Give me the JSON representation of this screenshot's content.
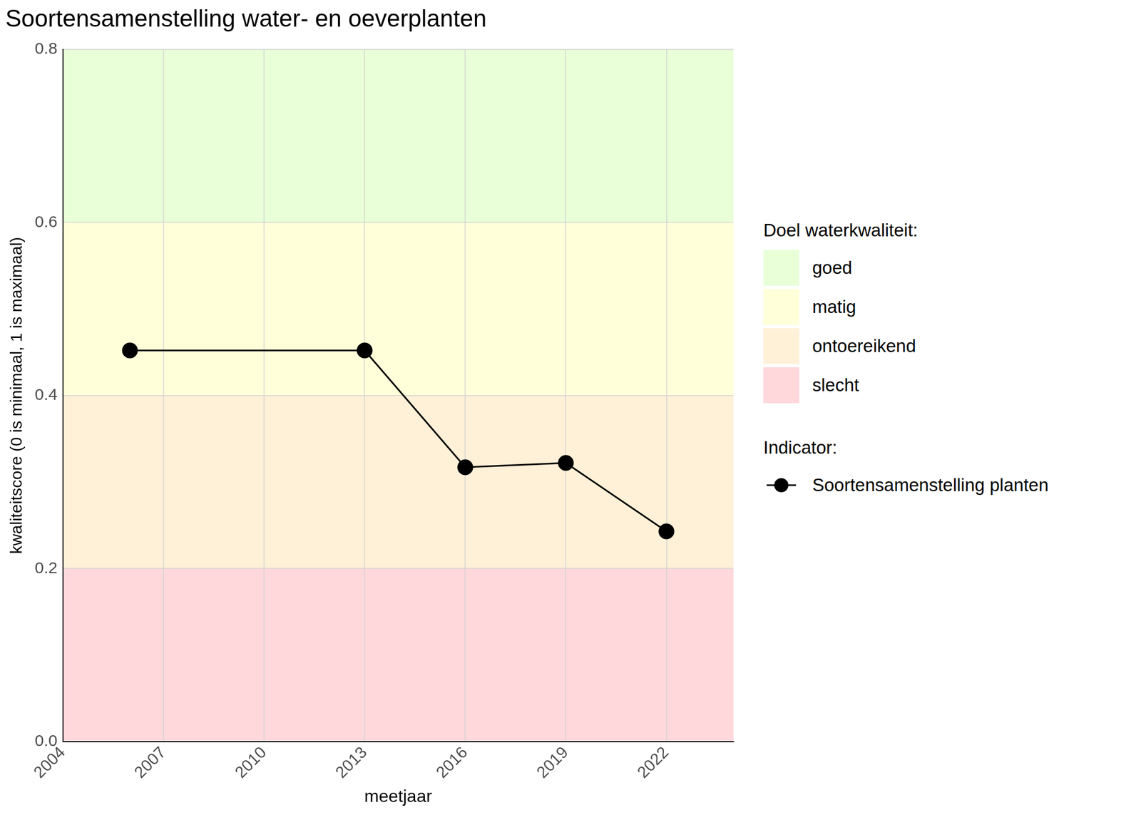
{
  "chart_data": {
    "type": "line",
    "title": "Soortensamenstelling water- en oeverplanten",
    "x_label": "meetjaar",
    "y_label": "kwaliteitscore (0 is minimaal, 1 is maximaal)",
    "x": [
      2006,
      2013,
      2016,
      2019,
      2022
    ],
    "series": [
      {
        "name": "Soortensamenstelling planten",
        "color": "#000000",
        "marker": "circle",
        "line_style": "solid",
        "values": [
          0.452,
          0.452,
          0.317,
          0.322,
          0.243
        ]
      }
    ],
    "xlim": [
      2004,
      2024
    ],
    "xticks": [
      2004,
      2007,
      2010,
      2013,
      2016,
      2019,
      2022
    ],
    "ylim": [
      0,
      0.8
    ],
    "yticks": [
      {
        "value": 0,
        "label": "0.0"
      },
      0.2,
      0.4,
      0.6,
      0.8
    ],
    "grid": true,
    "legend": "right",
    "band_legend_title": "Doel waterkwaliteit:",
    "series_legend_title": "Indicator:",
    "bands": [
      {
        "name": "goed",
        "from": 0.6,
        "to": 0.8,
        "color": "#e8ffd8"
      },
      {
        "name": "matig",
        "from": 0.4,
        "to": 0.6,
        "color": "#ffffda"
      },
      {
        "name": "ontoereikend",
        "from": 0.2,
        "to": 0.4,
        "color": "#fff0d8"
      },
      {
        "name": "slecht",
        "from": 0,
        "to": 0.2,
        "color": "#ffd8dc"
      }
    ]
  }
}
